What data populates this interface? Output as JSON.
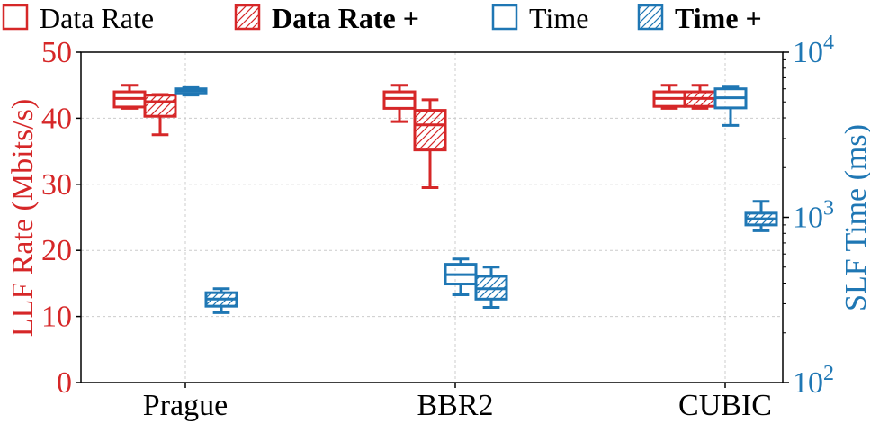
{
  "chart_data": {
    "type": "boxplot",
    "categories": [
      "Prague",
      "BBR2",
      "CUBIC"
    ],
    "legend": [
      {
        "label": "Data Rate",
        "hatched": false,
        "bold": false,
        "color": "#d62728"
      },
      {
        "label": "Data Rate +",
        "hatched": true,
        "bold": true,
        "color": "#d62728"
      },
      {
        "label": "Time",
        "hatched": false,
        "bold": false,
        "color": "#1f77b4"
      },
      {
        "label": "Time +",
        "hatched": true,
        "bold": true,
        "color": "#1f77b4"
      }
    ],
    "y_left": {
      "label": "LLF Rate (Mbits/s)",
      "lim": [
        0,
        50
      ],
      "ticks": [
        0,
        10,
        20,
        30,
        40,
        50
      ],
      "tick_labels": [
        "0",
        "10",
        "20",
        "30",
        "40",
        "50"
      ],
      "color": "#d62728"
    },
    "y_right": {
      "label": "SLF Time (ms)",
      "scale": "log",
      "lim": [
        100,
        10000
      ],
      "ticks": [
        100,
        1000,
        10000
      ],
      "tick_labels": [
        {
          "base": "10",
          "exp": "2"
        },
        {
          "base": "10",
          "exp": "3"
        },
        {
          "base": "10",
          "exp": "4"
        }
      ],
      "color": "#1f77b4"
    },
    "grid": true,
    "series": [
      {
        "name": "Data Rate",
        "axis": "left",
        "hatched": false,
        "color": "#d62728",
        "boxes": [
          {
            "category": "Prague",
            "whislo": 41.5,
            "q1": 41.7,
            "med": 43.0,
            "q3": 44.0,
            "whishi": 45.0
          },
          {
            "category": "BBR2",
            "whislo": 39.5,
            "q1": 41.5,
            "med": 43.0,
            "q3": 44.0,
            "whishi": 45.0
          },
          {
            "category": "CUBIC",
            "whislo": 41.5,
            "q1": 41.8,
            "med": 43.0,
            "q3": 44.0,
            "whishi": 45.0
          }
        ]
      },
      {
        "name": "Data Rate +",
        "axis": "left",
        "hatched": true,
        "color": "#d62728",
        "boxes": [
          {
            "category": "Prague",
            "whislo": 37.5,
            "q1": 40.3,
            "med": 42.5,
            "q3": 43.5,
            "whishi": 43.6
          },
          {
            "category": "BBR2",
            "whislo": 29.5,
            "q1": 35.2,
            "med": 39.0,
            "q3": 41.2,
            "whishi": 42.8
          },
          {
            "category": "CUBIC",
            "whislo": 41.5,
            "q1": 41.8,
            "med": 43.0,
            "q3": 44.0,
            "whishi": 45.0
          }
        ]
      },
      {
        "name": "Time",
        "axis": "right",
        "hatched": false,
        "color": "#1f77b4",
        "boxes": [
          {
            "category": "Prague",
            "whislo": 5500,
            "q1": 5600,
            "med": 5800,
            "q3": 6000,
            "whishi": 6100
          },
          {
            "category": "BBR2",
            "whislo": 340,
            "q1": 395,
            "med": 450,
            "q3": 520,
            "whishi": 560
          },
          {
            "category": "CUBIC",
            "whislo": 3600,
            "q1": 4600,
            "med": 5300,
            "q3": 6000,
            "whishi": 6150
          }
        ]
      },
      {
        "name": "Time +",
        "axis": "right",
        "hatched": true,
        "color": "#1f77b4",
        "boxes": [
          {
            "category": "Prague",
            "whislo": 265,
            "q1": 290,
            "med": 320,
            "q3": 350,
            "whishi": 370
          },
          {
            "category": "BBR2",
            "whislo": 285,
            "q1": 320,
            "med": 370,
            "q3": 440,
            "whishi": 500
          },
          {
            "category": "CUBIC",
            "whislo": 830,
            "q1": 900,
            "med": 980,
            "q3": 1060,
            "whishi": 1250
          }
        ]
      }
    ]
  }
}
